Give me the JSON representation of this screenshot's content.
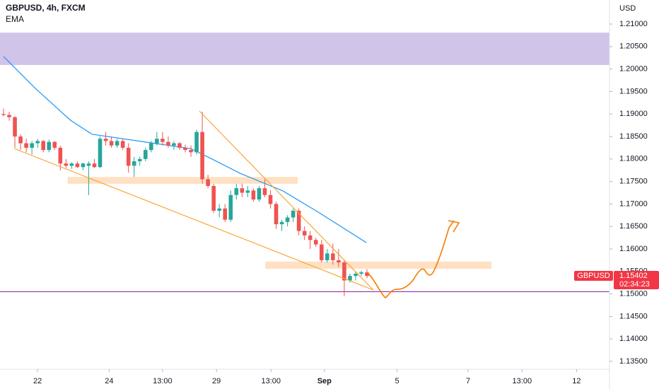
{
  "chart_data": {
    "type": "candlestick",
    "title": "GBPUSD, 4h, FXCM",
    "indicator": "EMA",
    "currency": "USD",
    "up_color": "#26a69a",
    "down_color": "#ef5350",
    "open": [
      1.19,
      1.1898,
      1.1893,
      1.185,
      1.1835,
      1.1825,
      1.1835,
      1.184,
      1.182,
      1.1838,
      1.1825,
      1.179,
      1.1785,
      1.179,
      1.1782,
      1.1785,
      1.179,
      1.1782,
      1.1845,
      1.184,
      1.183,
      1.184,
      1.1825,
      1.1785,
      1.1795,
      1.18,
      1.182,
      1.1835,
      1.1845,
      1.1838,
      1.183,
      1.1835,
      1.1825,
      1.182,
      1.1815,
      1.186,
      1.1755,
      1.174,
      1.1685,
      1.169,
      1.1665,
      1.172,
      1.1735,
      1.1725,
      1.173,
      1.171,
      1.1735,
      1.172,
      1.17,
      1.1655,
      1.166,
      1.167,
      1.1685,
      1.164,
      1.163,
      1.162,
      1.161,
      1.1575,
      1.159,
      1.1575,
      1.157,
      1.153,
      1.154,
      1.1545,
      1.1548
    ],
    "high": [
      1.1912,
      1.1905,
      1.1895,
      1.1855,
      1.1845,
      1.184,
      1.1845,
      1.1842,
      1.1843,
      1.184,
      1.183,
      1.18,
      1.1793,
      1.1795,
      1.1792,
      1.1795,
      1.18,
      1.185,
      1.186,
      1.185,
      1.1845,
      1.1845,
      1.1835,
      1.1805,
      1.1805,
      1.1825,
      1.184,
      1.186,
      1.186,
      1.185,
      1.184,
      1.1838,
      1.1832,
      1.183,
      1.1865,
      1.1905,
      1.1765,
      1.1745,
      1.17,
      1.17,
      1.173,
      1.1745,
      1.1745,
      1.174,
      1.1735,
      1.174,
      1.1755,
      1.173,
      1.1705,
      1.1665,
      1.1675,
      1.169,
      1.169,
      1.165,
      1.164,
      1.1625,
      1.162,
      1.16,
      1.1612,
      1.16,
      1.1575,
      1.1545,
      1.155,
      1.1552,
      1.1555
    ],
    "low": [
      1.1895,
      1.1885,
      1.1825,
      1.182,
      1.1815,
      1.181,
      1.1825,
      1.1815,
      1.1815,
      1.182,
      1.1775,
      1.178,
      1.1778,
      1.178,
      1.1775,
      1.172,
      1.178,
      1.178,
      1.183,
      1.1825,
      1.1825,
      1.182,
      1.177,
      1.176,
      1.1785,
      1.1795,
      1.1815,
      1.183,
      1.183,
      1.1825,
      1.182,
      1.182,
      1.1815,
      1.1805,
      1.181,
      1.1745,
      1.1735,
      1.168,
      1.167,
      1.166,
      1.166,
      1.171,
      1.1715,
      1.1715,
      1.1705,
      1.1705,
      1.1715,
      1.169,
      1.1645,
      1.164,
      1.165,
      1.166,
      1.163,
      1.162,
      1.16,
      1.1605,
      1.157,
      1.157,
      1.1565,
      1.156,
      1.1495,
      1.1525,
      1.153,
      1.154,
      1.1535
    ],
    "close": [
      1.1898,
      1.1893,
      1.185,
      1.1835,
      1.1825,
      1.1835,
      1.184,
      1.182,
      1.1838,
      1.1825,
      1.179,
      1.1785,
      1.179,
      1.1782,
      1.179,
      1.179,
      1.1782,
      1.1845,
      1.184,
      1.183,
      1.184,
      1.1825,
      1.1785,
      1.1795,
      1.18,
      1.182,
      1.1835,
      1.1845,
      1.1838,
      1.183,
      1.1835,
      1.1825,
      1.182,
      1.1815,
      1.186,
      1.1755,
      1.174,
      1.1685,
      1.169,
      1.1665,
      1.172,
      1.1735,
      1.1725,
      1.173,
      1.171,
      1.1735,
      1.172,
      1.17,
      1.1655,
      1.166,
      1.167,
      1.1685,
      1.164,
      1.163,
      1.162,
      1.161,
      1.1575,
      1.159,
      1.1575,
      1.157,
      1.153,
      1.154,
      1.1545,
      1.1548,
      1.154
    ],
    "ema": {
      "name": "EMA",
      "color": "#2196f3",
      "x": [
        0,
        5.6,
        11.8,
        15.6,
        24.3,
        33,
        36.7,
        41.7,
        49.2,
        55.4,
        63.9
      ],
      "values": [
        1.2028,
        1.1957,
        1.1886,
        1.1855,
        1.1839,
        1.1823,
        1.18,
        1.1768,
        1.1729,
        1.1682,
        1.1614
      ]
    },
    "zones": [
      {
        "color": "#d1c4e9",
        "ylim": [
          1.2009,
          1.2081
        ]
      },
      {
        "color": "#ffe0c2",
        "ylim": [
          1.1745,
          1.176
        ],
        "xlim": [
          11.3,
          51.8
        ]
      },
      {
        "color": "#ffe0c2",
        "ylim": [
          1.1556,
          1.1572
        ],
        "xlim": [
          46.1,
          85.9
        ]
      }
    ],
    "hline": {
      "color": "#9c27b0",
      "value": 1.1505
    },
    "xlim": [
      -0.62,
      106.7
    ],
    "xticks": [
      {
        "value": 6.0,
        "label": "22"
      },
      {
        "value": 18.6,
        "label": "24"
      },
      {
        "value": 28.0,
        "label": "13:00"
      },
      {
        "value": 37.5,
        "label": "29"
      },
      {
        "value": 47.1,
        "label": "13:00"
      },
      {
        "value": 56.5,
        "label": "Sep"
      },
      {
        "value": 69.3,
        "label": "5"
      },
      {
        "value": 81.8,
        "label": "7"
      },
      {
        "value": 91.3,
        "label": "13:00"
      },
      {
        "value": 100.9,
        "label": "12"
      }
    ],
    "ylim": [
      1.13327,
      1.21535
    ],
    "yticks": [
      {
        "value": 1.21,
        "label": "1.21000"
      },
      {
        "value": 1.205,
        "label": "1.20500"
      },
      {
        "value": 1.2,
        "label": "1.20000"
      },
      {
        "value": 1.195,
        "label": "1.19500"
      },
      {
        "value": 1.19,
        "label": "1.19000"
      },
      {
        "value": 1.185,
        "label": "1.18500"
      },
      {
        "value": 1.18,
        "label": "1.18000"
      },
      {
        "value": 1.175,
        "label": "1.17500"
      },
      {
        "value": 1.17,
        "label": "1.17000"
      },
      {
        "value": 1.165,
        "label": "1.16500"
      },
      {
        "value": 1.16,
        "label": "1.16000"
      },
      {
        "value": 1.155,
        "label": "1.15500"
      },
      {
        "value": 1.15,
        "label": "1.15000"
      },
      {
        "value": 1.145,
        "label": "1.14500"
      },
      {
        "value": 1.14,
        "label": "1.14000"
      },
      {
        "value": 1.135,
        "label": "1.13500"
      }
    ],
    "price_tag": {
      "symbol": "GBPUSD",
      "price": {
        "value": 1.15402,
        "label": "1.15402"
      },
      "countdown": "02:34:23",
      "color": "#f23645"
    }
  }
}
